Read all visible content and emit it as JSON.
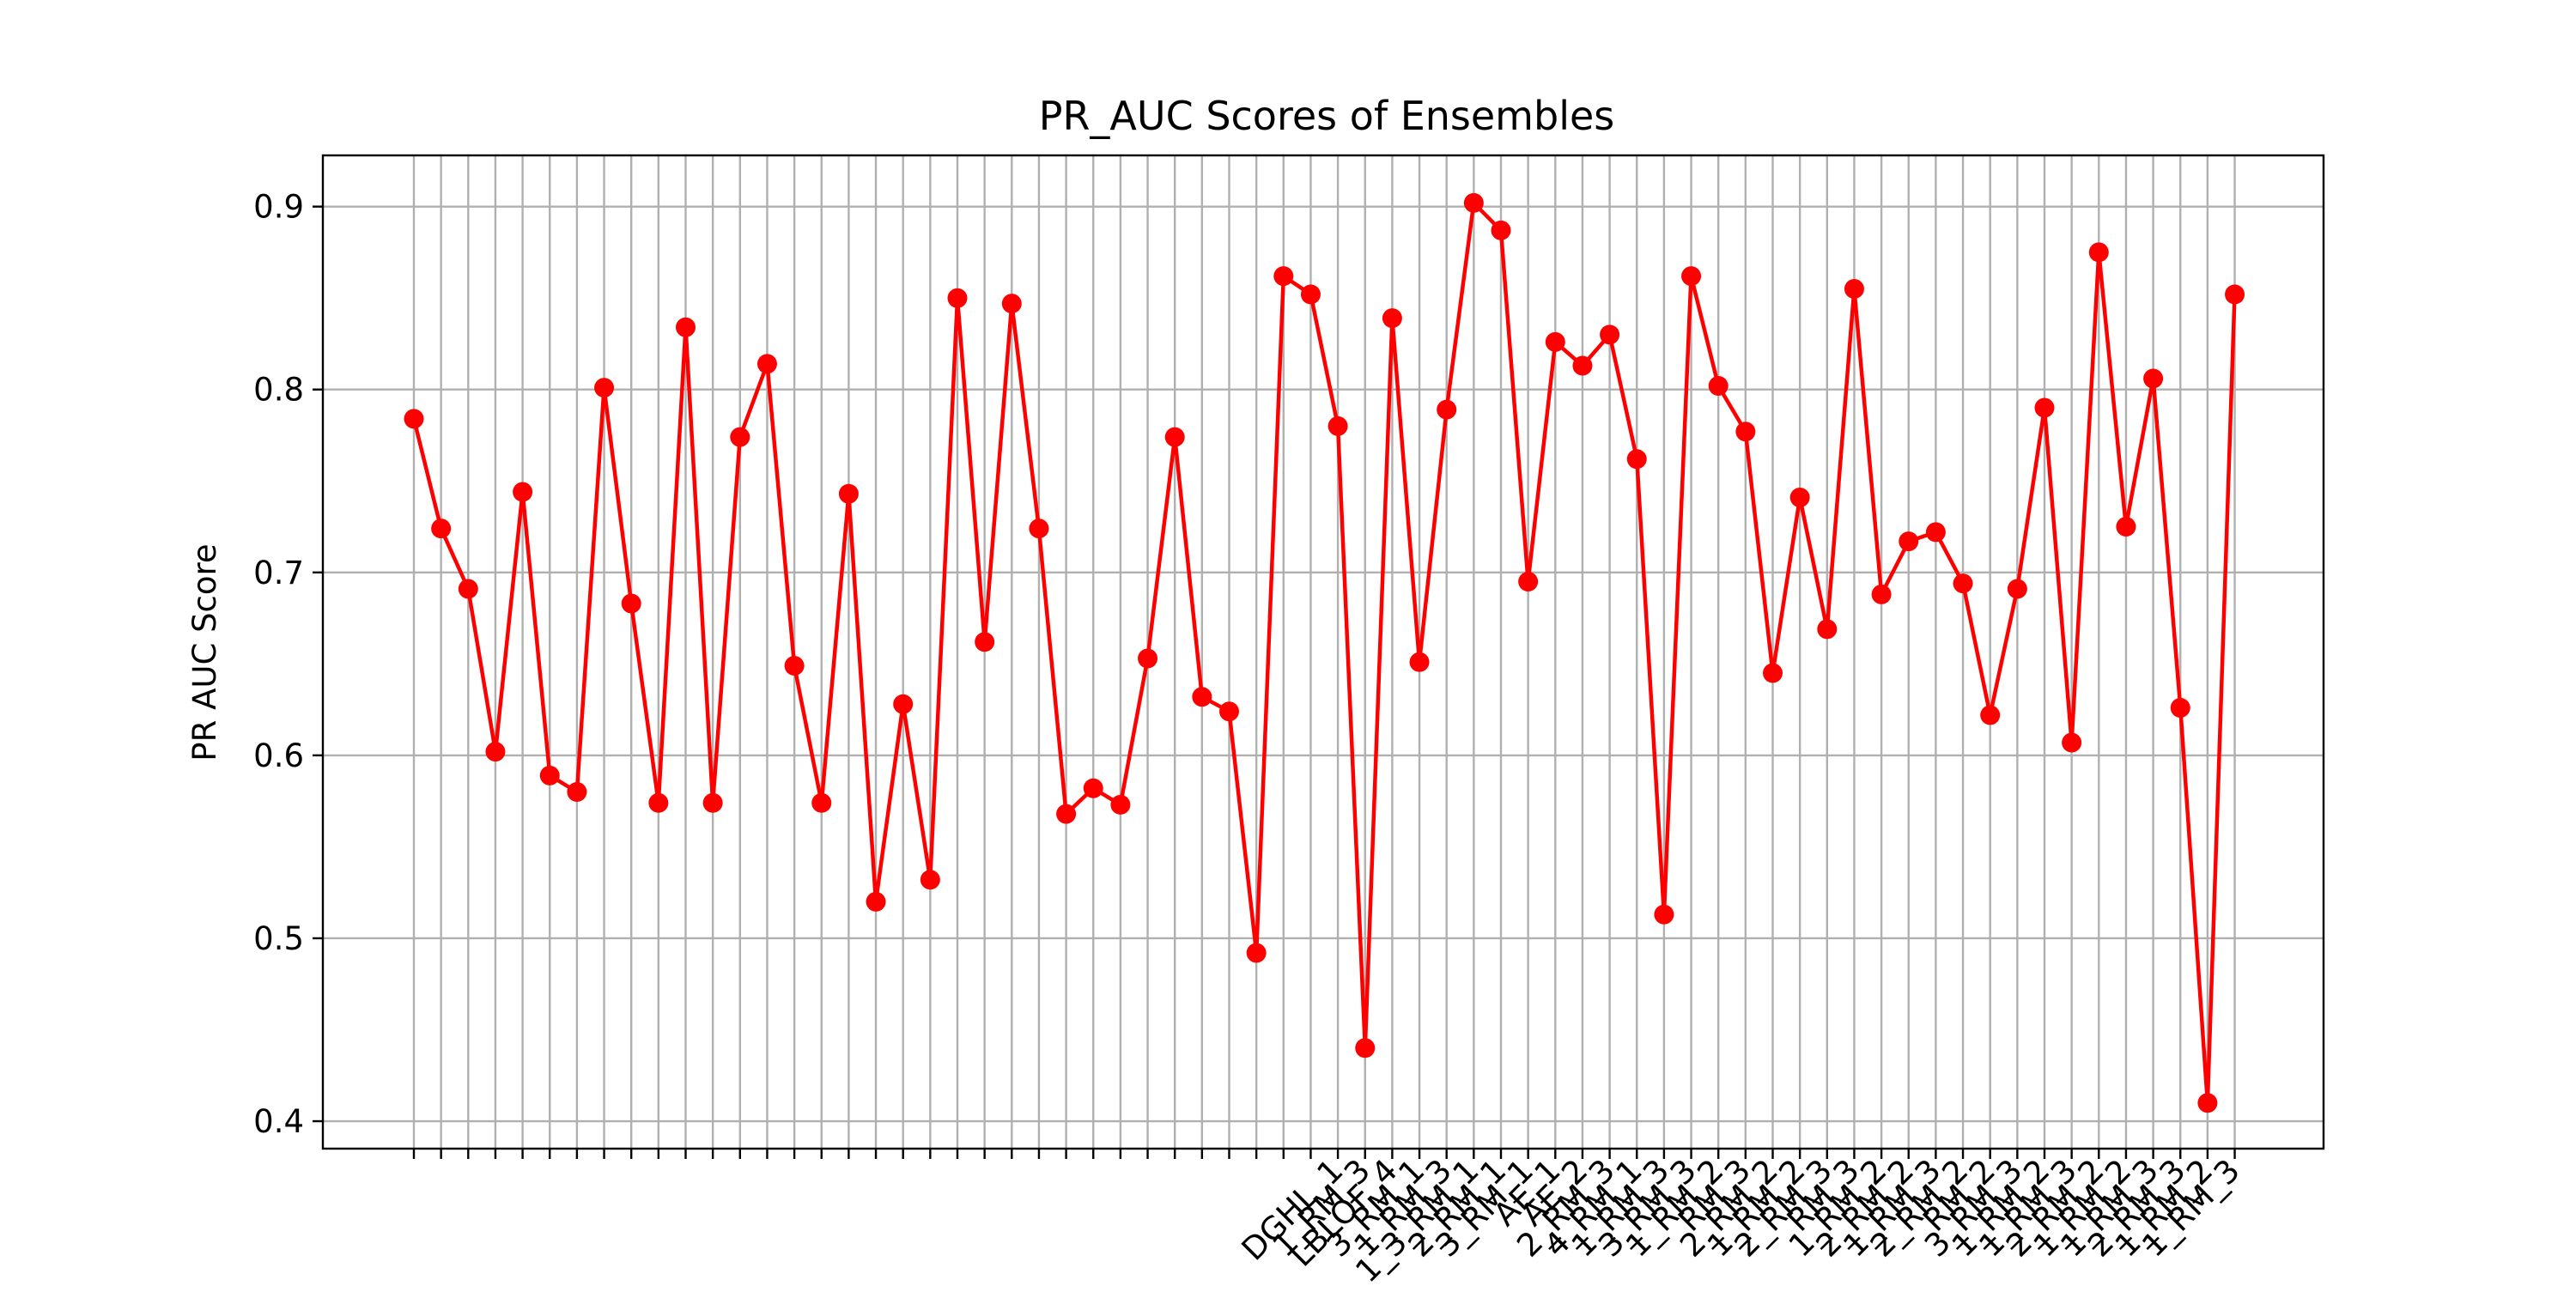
{
  "chart_data": {
    "type": "line",
    "title": "PR_AUC Scores of Ensembles",
    "xlabel": "",
    "ylabel": "PR AUC Score",
    "ylim": [
      0.385,
      0.928
    ],
    "yticks": [
      0.4,
      0.5,
      0.6,
      0.7,
      0.8,
      0.9
    ],
    "ytick_labels": [
      "0.4",
      "0.5",
      "0.6",
      "0.7",
      "0.8",
      "0.9"
    ],
    "grid": true,
    "legend": "none",
    "colors": {
      "line": "#ff0000",
      "marker": "#ff0000",
      "grid": "#b0b0b0",
      "axes": "#000000"
    },
    "xtick_labels_visible": [
      "DGHL_1",
      "1_RM_3",
      "LBLOF_4",
      "3_RM_1",
      "1_RM_3",
      "1_3_RM_1",
      "2_RM_1",
      "3_RM_1",
      "AE_1",
      "AE_2",
      "2_RM_3",
      "4_RM_1",
      "1_RM_3",
      "3_RM_3",
      "1_RM_2",
      "RM_3",
      "2_RM_2",
      "1_RM_2",
      "2_RM_3",
      "RM_3",
      "1_RM_2",
      "2_RM_2",
      "1_RM_3",
      "2_RM_2",
      "RM_2",
      "3_RM_3",
      "1_RM_2",
      "1_RM_3",
      "2_RM_2",
      "1_RM_2",
      "1_RM_3",
      "2_RM_3",
      "1_RM_2",
      "1_RM_3"
    ],
    "series": [
      {
        "values": [
          0.784,
          0.724,
          0.691,
          0.602,
          0.744,
          0.589,
          0.58,
          0.801,
          0.683,
          0.574,
          0.834,
          0.574,
          0.774,
          0.814,
          0.649,
          0.574,
          0.743,
          0.52,
          0.628,
          0.532,
          0.85,
          0.662,
          0.847,
          0.724,
          0.568,
          0.582,
          0.573,
          0.653,
          0.774,
          0.632,
          0.624,
          0.492,
          0.862,
          0.852,
          0.78,
          0.44,
          0.839,
          0.651,
          0.789,
          0.902,
          0.887,
          0.695,
          0.826,
          0.813,
          0.83,
          0.762,
          0.513,
          0.862,
          0.802,
          0.777,
          0.645,
          0.741,
          0.669,
          0.855,
          0.688,
          0.717,
          0.722,
          0.694,
          0.622,
          0.691,
          0.79,
          0.607,
          0.875,
          0.725,
          0.806,
          0.626,
          0.41,
          0.852
        ]
      }
    ]
  }
}
